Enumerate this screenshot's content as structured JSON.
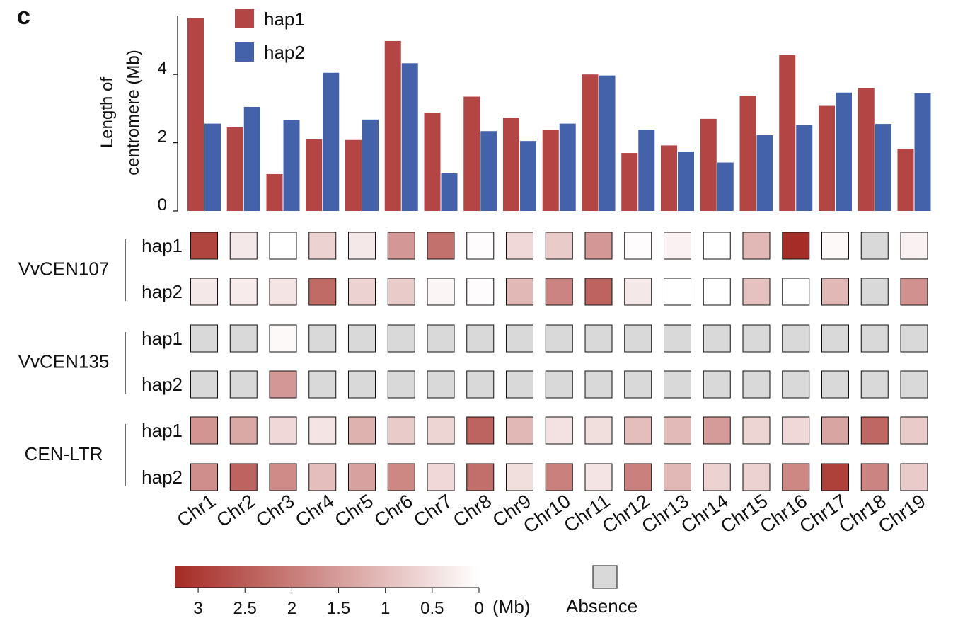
{
  "panel_label": "c",
  "colors": {
    "hap1": "#B34545",
    "hap2": "#4462AA",
    "absence": "#D9D9D9",
    "scale_dark": "#A52A24",
    "scale_light": "#FFFFFF"
  },
  "chart_data": [
    {
      "type": "bar",
      "ylabel_line1": "Length of",
      "ylabel_line2": "centromere (Mb)",
      "ylim": [
        0,
        5.6
      ],
      "yticks": [
        "0",
        "2",
        "4"
      ],
      "categories": [
        "Chr1",
        "Chr2",
        "Chr3",
        "Chr4",
        "Chr5",
        "Chr6",
        "Chr7",
        "Chr8",
        "Chr9",
        "Chr10",
        "Chr11",
        "Chr12",
        "Chr13",
        "Chr14",
        "Chr15",
        "Chr16",
        "Chr17",
        "Chr18",
        "Chr19"
      ],
      "legend_position": "top",
      "series": [
        {
          "name": "hap1",
          "values": [
            5.65,
            2.45,
            1.08,
            2.1,
            2.08,
            4.98,
            2.88,
            3.35,
            2.73,
            2.37,
            4.0,
            1.7,
            1.92,
            2.7,
            3.38,
            4.57,
            3.08,
            3.6,
            1.82
          ]
        },
        {
          "name": "hap2",
          "values": [
            2.56,
            3.05,
            2.67,
            4.05,
            2.68,
            4.33,
            1.1,
            2.34,
            2.05,
            2.56,
            3.97,
            2.38,
            1.74,
            1.42,
            2.22,
            2.52,
            3.47,
            2.55,
            3.45
          ]
        }
      ]
    },
    {
      "type": "heatmap",
      "categories": [
        "Chr1",
        "Chr2",
        "Chr3",
        "Chr4",
        "Chr5",
        "Chr6",
        "Chr7",
        "Chr8",
        "Chr9",
        "Chr10",
        "Chr11",
        "Chr12",
        "Chr13",
        "Chr14",
        "Chr15",
        "Chr16",
        "Chr17",
        "Chr18",
        "Chr19"
      ],
      "scale_range_mb": [
        0,
        3.3
      ],
      "absence_label": "Absence",
      "groups": [
        {
          "name": "VvCEN107",
          "rows": [
            {
              "name": "hap1",
              "values": [
                2.9,
                0.35,
                0,
                0.7,
                0.35,
                1.6,
                2.2,
                0.05,
                0.6,
                0.8,
                1.6,
                0.05,
                0.2,
                0,
                1.1,
                3.25,
                0.1,
                null,
                0.2
              ]
            },
            {
              "name": "hap2",
              "values": [
                0.35,
                0.3,
                0.4,
                2.3,
                0.7,
                0.8,
                0.15,
                0.05,
                1.1,
                1.9,
                2.4,
                0.35,
                0,
                0,
                0.95,
                0,
                1.1,
                null,
                1.7
              ]
            }
          ]
        },
        {
          "name": "VvCEN135",
          "rows": [
            {
              "name": "hap1",
              "values": [
                null,
                null,
                0.1,
                null,
                null,
                null,
                null,
                null,
                null,
                null,
                null,
                null,
                null,
                null,
                null,
                null,
                null,
                null,
                null
              ]
            },
            {
              "name": "hap2",
              "values": [
                null,
                null,
                1.6,
                null,
                null,
                null,
                null,
                null,
                null,
                null,
                null,
                null,
                null,
                null,
                null,
                null,
                null,
                null,
                null
              ]
            }
          ]
        },
        {
          "name": "CEN-LTR",
          "rows": [
            {
              "name": "hap1",
              "values": [
                1.65,
                1.35,
                0.6,
                0.4,
                1.2,
                0.8,
                0.65,
                2.4,
                1.1,
                0.45,
                0.5,
                1.0,
                1.05,
                1.55,
                0.65,
                0.6,
                1.4,
                2.35,
                0.8
              ]
            },
            {
              "name": "hap2",
              "values": [
                1.75,
                2.4,
                1.8,
                1.0,
                1.45,
                1.85,
                0.6,
                2.25,
                0.5,
                1.95,
                0.4,
                1.95,
                1.1,
                0.7,
                0.7,
                1.85,
                2.95,
                1.9,
                0.8
              ]
            }
          ]
        }
      ],
      "colorbar": {
        "ticks": [
          "3",
          "2.5",
          "2",
          "1.5",
          "1",
          "0.5",
          "0"
        ],
        "unit": "(Mb)"
      }
    }
  ]
}
